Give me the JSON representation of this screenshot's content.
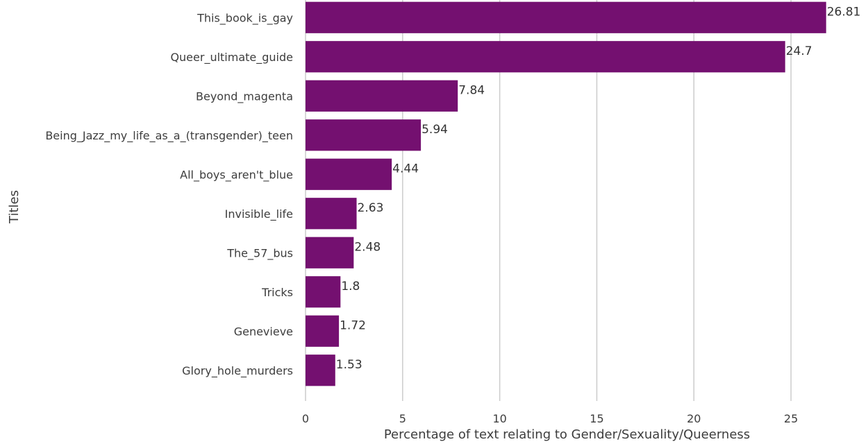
{
  "chart_data": {
    "type": "bar",
    "orientation": "horizontal",
    "categories": [
      "This_book_is_gay",
      "Queer_ultimate_guide",
      "Beyond_magenta",
      "Being_Jazz_my_life_as_a_(transgender)_teen",
      "All_boys_aren't_blue",
      "Invisible_life",
      "The_57_bus",
      "Tricks",
      "Genevieve",
      "Glory_hole_murders"
    ],
    "values": [
      26.81,
      24.7,
      7.84,
      5.94,
      4.44,
      2.63,
      2.48,
      1.8,
      1.72,
      1.53
    ],
    "data_labels": [
      "26.81",
      "24.7",
      "7.84",
      "5.94",
      "4.44",
      "2.63",
      "2.48",
      "1.8",
      "1.72",
      "1.53"
    ],
    "title": "",
    "xlabel": "Percentage of text relating to Gender/Sexuality/Queerness",
    "ylabel": "Titles",
    "xlim": [
      0,
      27.5
    ],
    "xticks": [
      0,
      5,
      10,
      15,
      20,
      25
    ],
    "xtick_labels": [
      "0",
      "5",
      "10",
      "15",
      "20",
      "25"
    ],
    "grid": "vertical",
    "bar_color": "#741070",
    "grid_color": "#cccccc",
    "text_color": "#3d3d3d"
  }
}
